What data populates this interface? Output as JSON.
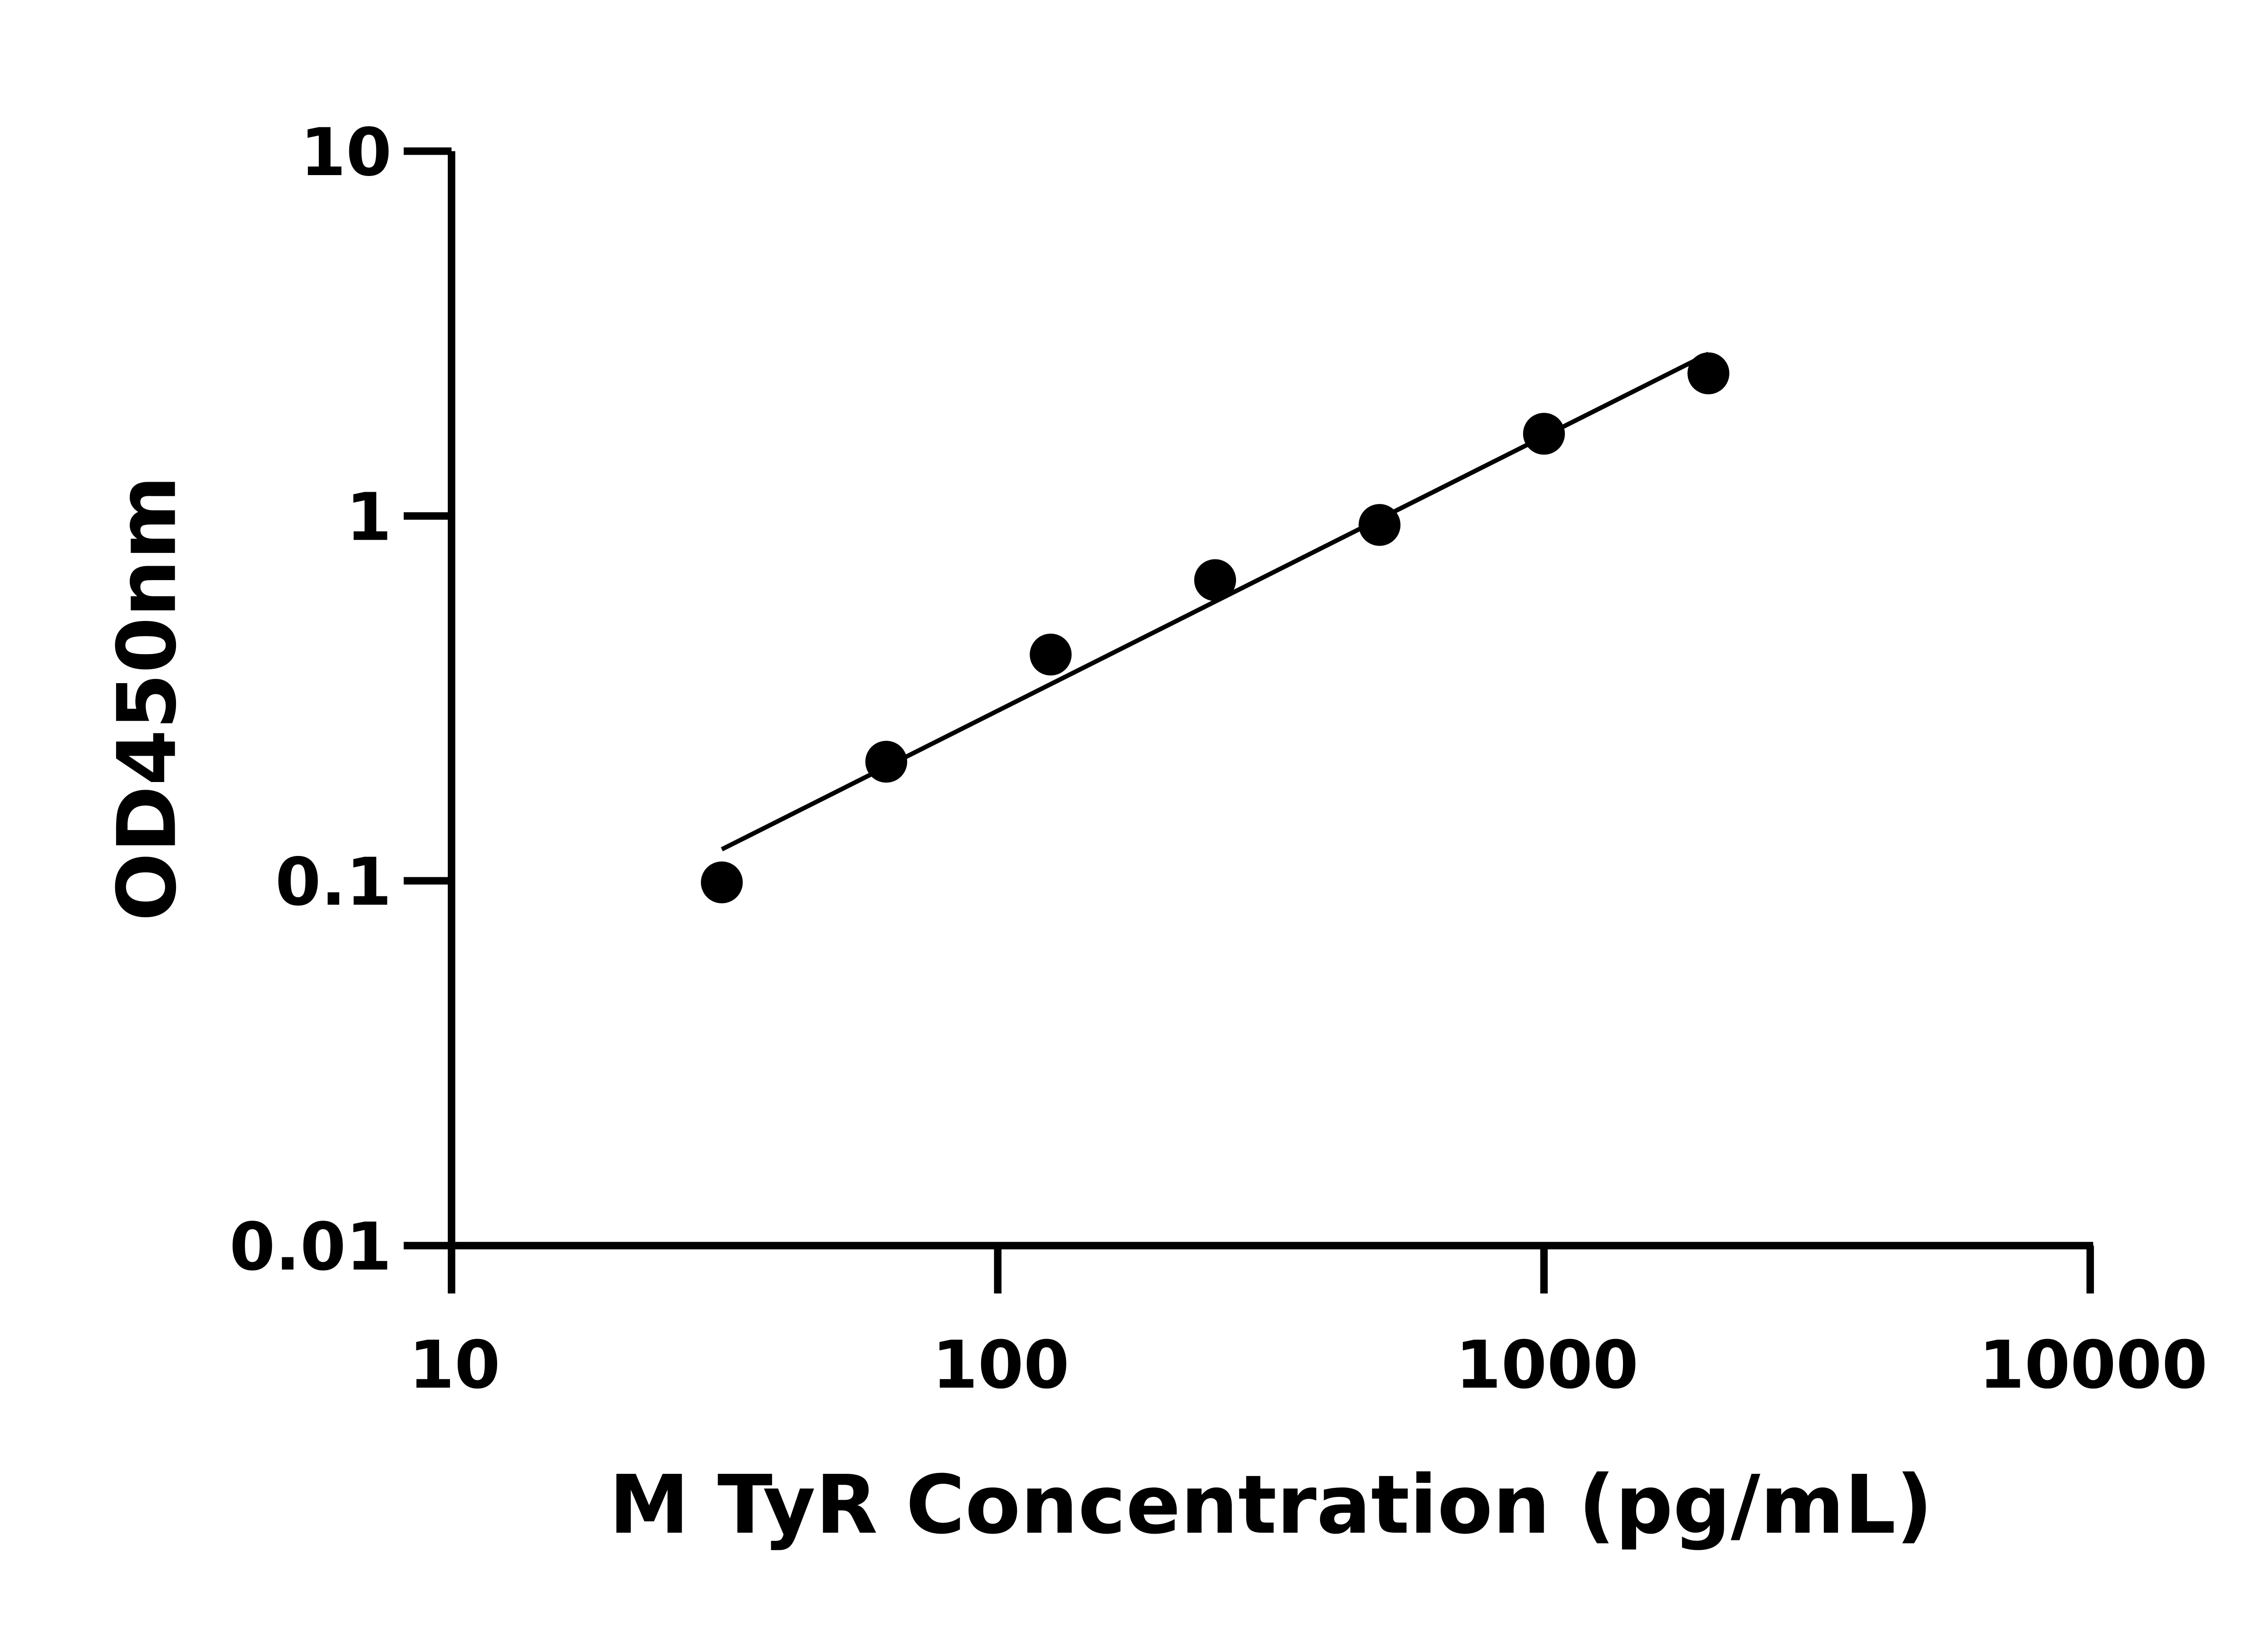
{
  "chart_data": {
    "type": "scatter",
    "title": "",
    "xlabel": "M TyR Concentration (pg/mL)",
    "ylabel": "OD450nm",
    "x_scale": "log",
    "y_scale": "log",
    "xlim": [
      10,
      10000
    ],
    "ylim": [
      0.01,
      10
    ],
    "x_ticks": [
      "10",
      "100",
      "1000",
      "10000"
    ],
    "y_ticks": [
      "0.01",
      "0.1",
      "1",
      "10"
    ],
    "grid": false,
    "legend": "none",
    "fit_line": "log-log linear fit",
    "color": "#000000",
    "x": [
      31.25,
      62.5,
      125,
      250,
      500,
      1000,
      2000
    ],
    "y": [
      0.099,
      0.212,
      0.417,
      0.667,
      0.945,
      1.68,
      2.46
    ]
  }
}
